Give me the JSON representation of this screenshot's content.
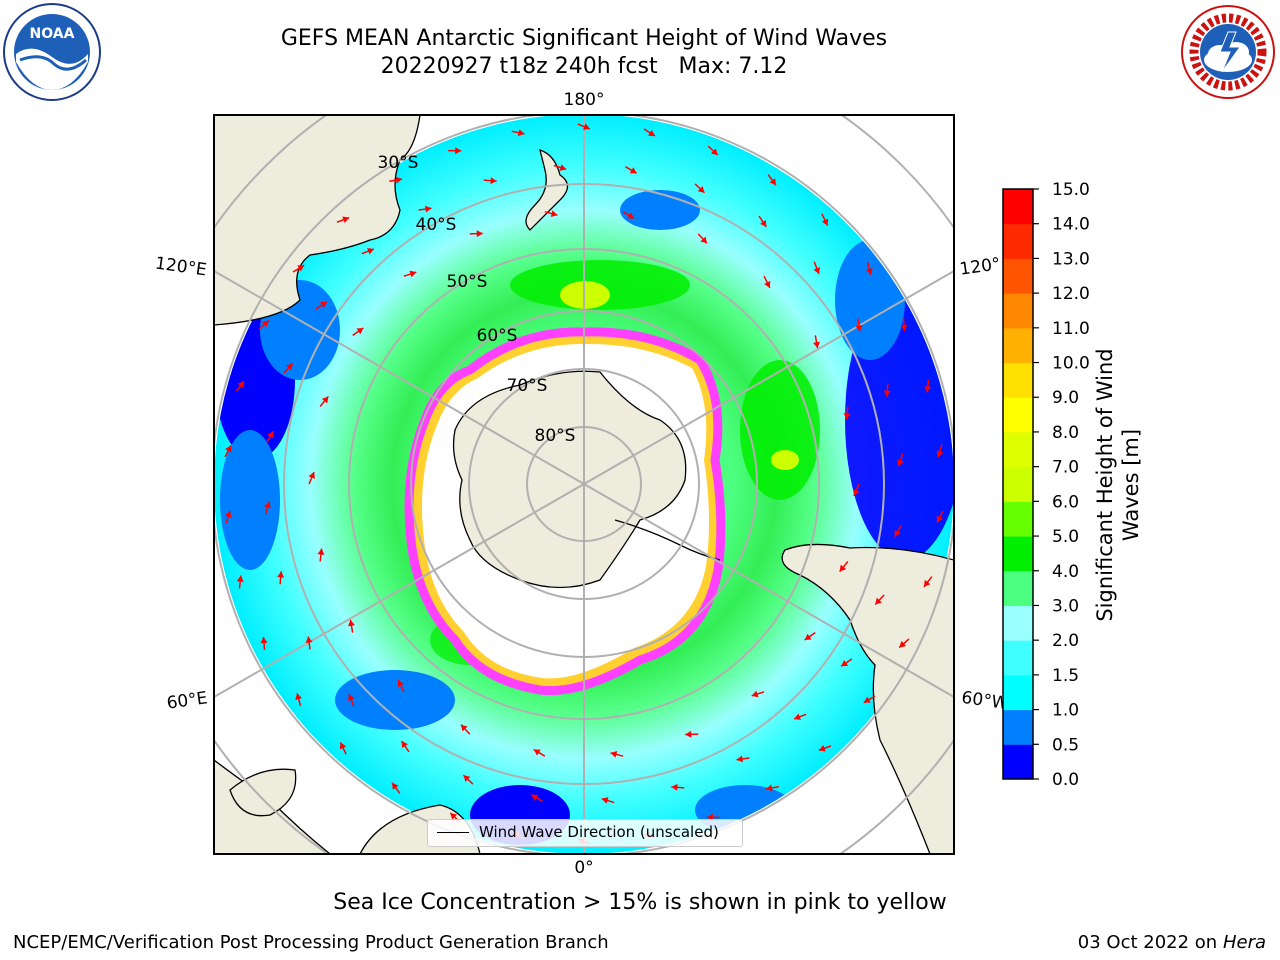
{
  "title": {
    "line1": "GEFS MEAN Antarctic Significant Height of Wind Waves",
    "line2": "20220927 t18z 240h fcst   Max: 7.12"
  },
  "logos": {
    "left": "noaa-logo",
    "left_text": "NOAA",
    "right": "national-weather-service-logo"
  },
  "map": {
    "longitude_labels": {
      "top": "180°",
      "bottom": "0°",
      "upper_left": "120°E",
      "lower_left": "60°E",
      "upper_right": "120°",
      "lower_right": "60°W"
    },
    "latitude_labels": [
      "30°S",
      "40°S",
      "50°S",
      "60°S",
      "70°S",
      "80°S"
    ],
    "legend": "Wind Wave Direction (unscaled)",
    "colors": {
      "land": "#eeecdc",
      "ice_free_polar": "#ffffff",
      "sea_ice_edge": "#ff40ff",
      "sea_ice_inner": "#ffd030",
      "grid": "#b0b0b0",
      "arrows": "#ff0000"
    }
  },
  "colorbar": {
    "label": "Significant Height of Wind Waves [m]",
    "ticks": [
      "0.0",
      "0.5",
      "1.0",
      "1.5",
      "2.0",
      "3.0",
      "4.0",
      "5.0",
      "6.0",
      "7.0",
      "8.0",
      "9.0",
      "10.0",
      "11.0",
      "12.0",
      "13.0",
      "14.0",
      "15.0"
    ],
    "colors": [
      "#0000ff",
      "#0080ff",
      "#00ffff",
      "#40ffff",
      "#99ffff",
      "#4dff80",
      "#00ee00",
      "#66ff00",
      "#ccff00",
      "#ddff00",
      "#ffff00",
      "#ffe000",
      "#ffb000",
      "#ff8800",
      "#ff5500",
      "#ff2a00",
      "#ff0000"
    ]
  },
  "notes": {
    "sea_ice": "Sea Ice Concentration > 15% is shown in pink to yellow",
    "footer_left": "NCEP/EMC/Verification Post Processing Product Generation Branch",
    "footer_date": "03 Oct 2022 on",
    "footer_host": "Hera"
  }
}
